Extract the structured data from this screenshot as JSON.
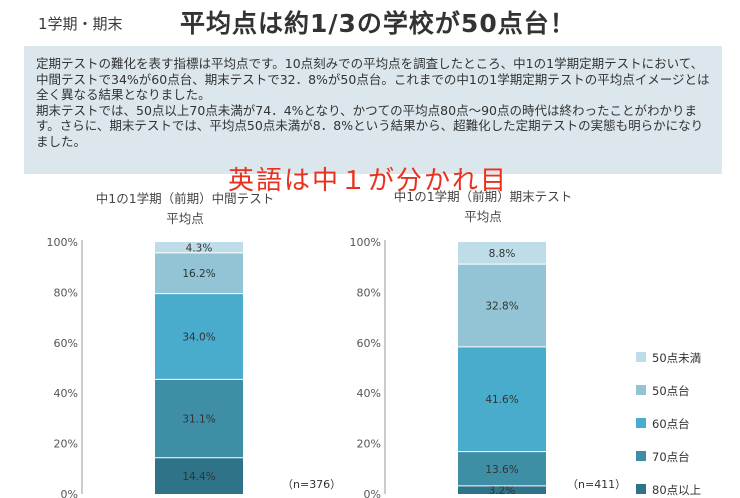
{
  "header": {
    "subtitle": "1学期・期末",
    "title": "平均点は約1/3の学校が50点台！"
  },
  "info": {
    "paragraph1": "定期テストの難化を表す指標は平均点です。10点刻みでの平均点を調査したところ、中1の1学期定期テストにおいて、中間テストで34%が60点台、期末テストで32．8%が50点台。これまでの中1の1学期定期テストの平均点イメージとは全く異なる結果となりました。",
    "paragraph2": "期末テストでは、50点以上70点未満が74．4%となり、かつての平均点80点～90点の時代は終わったことがわかります。さらに、期末テストでは、平均点50点未満が8．8%という結果から、超難化した定期テストの実態も明らかになりました。"
  },
  "highlight": "英語は中１が分かれ目",
  "colors": {
    "below50": "#bfdde8",
    "50s": "#92c4d6",
    "60s": "#4aaccc",
    "70s": "#3e8fa6",
    "80plus": "#2f7389",
    "axis": "#999999"
  },
  "chart_data": [
    {
      "type": "bar",
      "stacked": true,
      "title": "中1の1学期（前期）中間テスト",
      "subtitle": "平均点",
      "note": "（n=376）",
      "ylim": [
        0,
        100
      ],
      "y_ticks": [
        "0%",
        "20%",
        "40%",
        "60%",
        "80%",
        "100%"
      ],
      "series": [
        {
          "name": "80点以上",
          "value": 14.4,
          "label": "14.4%"
        },
        {
          "name": "70点台",
          "value": 31.1,
          "label": "31.1%"
        },
        {
          "name": "60点台",
          "value": 34.0,
          "label": "34.0%"
        },
        {
          "name": "50点台",
          "value": 16.2,
          "label": "16.2%"
        },
        {
          "name": "50点未満",
          "value": 4.3,
          "label": "4.3%"
        }
      ]
    },
    {
      "type": "bar",
      "stacked": true,
      "title": "中1の1学期（前期）期末テスト",
      "subtitle": "平均点",
      "note": "（n=411）",
      "ylim": [
        0,
        100
      ],
      "y_ticks": [
        "0%",
        "20%",
        "40%",
        "60%",
        "80%",
        "100%"
      ],
      "series": [
        {
          "name": "80点以上",
          "value": 3.2,
          "label": "3.2%"
        },
        {
          "name": "70点台",
          "value": 13.6,
          "label": "13.6%"
        },
        {
          "name": "60点台",
          "value": 41.6,
          "label": "41.6%"
        },
        {
          "name": "50点台",
          "value": 32.8,
          "label": "32.8%"
        },
        {
          "name": "50点未満",
          "value": 8.8,
          "label": "8.8%"
        }
      ]
    }
  ],
  "legend": [
    {
      "label": "50点未満",
      "color_key": "below50"
    },
    {
      "label": "50点台",
      "color_key": "50s"
    },
    {
      "label": "60点台",
      "color_key": "60s"
    },
    {
      "label": "70点台",
      "color_key": "70s"
    },
    {
      "label": "80点以上",
      "color_key": "80plus"
    }
  ]
}
